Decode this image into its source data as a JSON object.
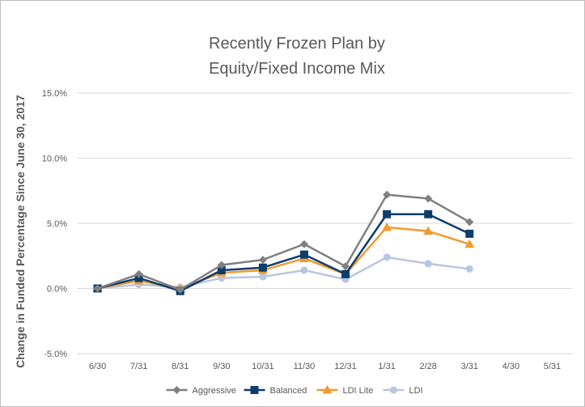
{
  "chart_data": {
    "type": "line",
    "title_lines": [
      "Recently Frozen Plan by",
      "Equity/Fixed Income Mix"
    ],
    "xlabel": "",
    "ylabel": "Change in Funded Percentage Since June 30, 2017",
    "categories": [
      "6/30",
      "7/31",
      "8/31",
      "9/30",
      "10/31",
      "11/30",
      "12/31",
      "1/31",
      "2/28",
      "3/31",
      "4/30",
      "5/31"
    ],
    "ylim": [
      -0.05,
      0.15
    ],
    "yticks": [
      -0.05,
      0.0,
      0.05,
      0.1,
      0.15
    ],
    "ytick_labels": [
      "-5.0%",
      "0.0%",
      "5.0%",
      "10.0%",
      "15.0%"
    ],
    "grid": "horizontal",
    "legend_position": "bottom",
    "series": [
      {
        "name": "Aggressive",
        "color": "#808080",
        "marker": "diamond",
        "values": [
          0.0,
          0.011,
          -0.001,
          0.018,
          0.022,
          0.034,
          0.017,
          0.072,
          0.069,
          0.051,
          null,
          null
        ]
      },
      {
        "name": "Balanced",
        "color": "#0b3d6e",
        "marker": "square",
        "values": [
          0.0,
          0.008,
          -0.002,
          0.014,
          0.016,
          0.026,
          0.011,
          0.057,
          0.057,
          0.042,
          null,
          null
        ]
      },
      {
        "name": "LDI Lite",
        "color": "#f29a2e",
        "marker": "triangle",
        "values": [
          0.0,
          0.006,
          0.0,
          0.012,
          0.014,
          0.023,
          0.011,
          0.047,
          0.044,
          0.034,
          null,
          null
        ]
      },
      {
        "name": "LDI",
        "color": "#b8c7e0",
        "marker": "circle",
        "values": [
          0.0,
          0.003,
          0.001,
          0.008,
          0.009,
          0.014,
          0.007,
          0.024,
          0.019,
          0.015,
          null,
          null
        ]
      }
    ]
  }
}
